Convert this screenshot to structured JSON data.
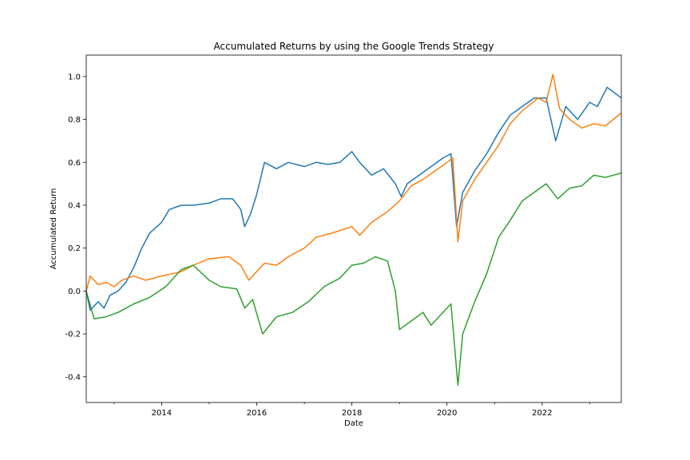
{
  "chart_data": {
    "type": "line",
    "title": "Accumulated Returns by using the Google Trends Strategy",
    "xlabel": "Date",
    "ylabel": "Accumulated Return",
    "xlim": [
      "2012-06-01",
      "2023-09-01"
    ],
    "ylim": [
      -0.52,
      1.1
    ],
    "x_ticks": [
      "2014",
      "2016",
      "2018",
      "2020",
      "2022"
    ],
    "y_ticks": [
      "-0.4",
      "-0.2",
      "0.0",
      "0.2",
      "0.4",
      "0.6",
      "0.8",
      "1.0"
    ],
    "grid": false,
    "legend": "none",
    "series": [
      {
        "color": "#1f77b4",
        "points": [
          [
            "2012-06-01",
            0.0
          ],
          [
            "2012-07-01",
            -0.09
          ],
          [
            "2012-09-01",
            -0.05
          ],
          [
            "2012-10-15",
            -0.08
          ],
          [
            "2012-12-01",
            -0.02
          ],
          [
            "2013-02-01",
            0.0
          ],
          [
            "2013-04-01",
            0.04
          ],
          [
            "2013-06-01",
            0.11
          ],
          [
            "2013-08-01",
            0.2
          ],
          [
            "2013-10-01",
            0.27
          ],
          [
            "2014-01-01",
            0.32
          ],
          [
            "2014-03-01",
            0.38
          ],
          [
            "2014-06-01",
            0.4
          ],
          [
            "2014-09-01",
            0.4
          ],
          [
            "2015-01-01",
            0.41
          ],
          [
            "2015-04-01",
            0.43
          ],
          [
            "2015-07-01",
            0.43
          ],
          [
            "2015-09-01",
            0.38
          ],
          [
            "2015-10-01",
            0.3
          ],
          [
            "2015-11-15",
            0.36
          ],
          [
            "2016-01-01",
            0.45
          ],
          [
            "2016-03-01",
            0.6
          ],
          [
            "2016-06-01",
            0.57
          ],
          [
            "2016-09-01",
            0.6
          ],
          [
            "2017-01-01",
            0.58
          ],
          [
            "2017-04-01",
            0.6
          ],
          [
            "2017-07-01",
            0.59
          ],
          [
            "2017-10-01",
            0.6
          ],
          [
            "2018-01-01",
            0.65
          ],
          [
            "2018-03-01",
            0.6
          ],
          [
            "2018-06-01",
            0.54
          ],
          [
            "2018-09-01",
            0.57
          ],
          [
            "2018-12-01",
            0.5
          ],
          [
            "2019-01-15",
            0.44
          ],
          [
            "2019-03-01",
            0.5
          ],
          [
            "2019-06-01",
            0.54
          ],
          [
            "2019-09-01",
            0.58
          ],
          [
            "2019-12-01",
            0.62
          ],
          [
            "2020-02-01",
            0.64
          ],
          [
            "2020-03-15",
            0.3
          ],
          [
            "2020-05-01",
            0.46
          ],
          [
            "2020-08-01",
            0.56
          ],
          [
            "2020-11-01",
            0.64
          ],
          [
            "2021-02-01",
            0.74
          ],
          [
            "2021-05-01",
            0.82
          ],
          [
            "2021-08-01",
            0.86
          ],
          [
            "2021-11-01",
            0.9
          ],
          [
            "2022-02-01",
            0.9
          ],
          [
            "2022-04-15",
            0.7
          ],
          [
            "2022-07-01",
            0.86
          ],
          [
            "2022-10-01",
            0.8
          ],
          [
            "2023-01-01",
            0.88
          ],
          [
            "2023-03-01",
            0.86
          ],
          [
            "2023-05-15",
            0.95
          ],
          [
            "2023-09-01",
            0.9
          ]
        ]
      },
      {
        "color": "#ff7f0e",
        "points": [
          [
            "2012-06-01",
            0.0
          ],
          [
            "2012-07-01",
            0.07
          ],
          [
            "2012-09-01",
            0.03
          ],
          [
            "2012-11-01",
            0.04
          ],
          [
            "2013-01-01",
            0.02
          ],
          [
            "2013-03-01",
            0.05
          ],
          [
            "2013-06-01",
            0.07
          ],
          [
            "2013-09-01",
            0.05
          ],
          [
            "2014-01-01",
            0.07
          ],
          [
            "2014-06-01",
            0.09
          ],
          [
            "2014-09-01",
            0.12
          ],
          [
            "2015-01-01",
            0.15
          ],
          [
            "2015-06-01",
            0.16
          ],
          [
            "2015-09-01",
            0.12
          ],
          [
            "2015-11-01",
            0.05
          ],
          [
            "2016-03-01",
            0.13
          ],
          [
            "2016-06-01",
            0.12
          ],
          [
            "2016-09-01",
            0.16
          ],
          [
            "2017-01-01",
            0.2
          ],
          [
            "2017-04-01",
            0.25
          ],
          [
            "2017-08-01",
            0.27
          ],
          [
            "2018-01-01",
            0.3
          ],
          [
            "2018-03-01",
            0.26
          ],
          [
            "2018-06-01",
            0.32
          ],
          [
            "2018-10-01",
            0.37
          ],
          [
            "2019-01-01",
            0.42
          ],
          [
            "2019-04-01",
            0.49
          ],
          [
            "2019-07-01",
            0.52
          ],
          [
            "2019-10-01",
            0.56
          ],
          [
            "2020-01-01",
            0.6
          ],
          [
            "2020-02-15",
            0.62
          ],
          [
            "2020-03-25",
            0.23
          ],
          [
            "2020-05-01",
            0.42
          ],
          [
            "2020-08-01",
            0.52
          ],
          [
            "2020-11-01",
            0.6
          ],
          [
            "2021-02-01",
            0.68
          ],
          [
            "2021-05-01",
            0.78
          ],
          [
            "2021-08-01",
            0.84
          ],
          [
            "2021-12-01",
            0.9
          ],
          [
            "2022-02-01",
            0.88
          ],
          [
            "2022-03-25",
            1.01
          ],
          [
            "2022-05-15",
            0.85
          ],
          [
            "2022-08-01",
            0.8
          ],
          [
            "2022-11-01",
            0.76
          ],
          [
            "2023-02-01",
            0.78
          ],
          [
            "2023-05-01",
            0.77
          ],
          [
            "2023-09-01",
            0.83
          ]
        ]
      },
      {
        "color": "#2ca02c",
        "points": [
          [
            "2012-06-01",
            0.0
          ],
          [
            "2012-08-01",
            -0.13
          ],
          [
            "2012-11-01",
            -0.12
          ],
          [
            "2013-02-01",
            -0.1
          ],
          [
            "2013-06-01",
            -0.06
          ],
          [
            "2013-10-01",
            -0.03
          ],
          [
            "2014-02-01",
            0.02
          ],
          [
            "2014-06-01",
            0.1
          ],
          [
            "2014-09-01",
            0.12
          ],
          [
            "2015-01-01",
            0.05
          ],
          [
            "2015-04-01",
            0.02
          ],
          [
            "2015-08-01",
            0.01
          ],
          [
            "2015-10-01",
            -0.08
          ],
          [
            "2015-12-01",
            -0.04
          ],
          [
            "2016-02-15",
            -0.2
          ],
          [
            "2016-06-01",
            -0.12
          ],
          [
            "2016-10-01",
            -0.1
          ],
          [
            "2017-02-01",
            -0.05
          ],
          [
            "2017-06-01",
            0.02
          ],
          [
            "2017-10-01",
            0.06
          ],
          [
            "2018-01-01",
            0.12
          ],
          [
            "2018-04-01",
            0.13
          ],
          [
            "2018-07-01",
            0.16
          ],
          [
            "2018-10-01",
            0.14
          ],
          [
            "2018-12-01",
            0.0
          ],
          [
            "2019-01-01",
            -0.18
          ],
          [
            "2019-04-01",
            -0.14
          ],
          [
            "2019-07-01",
            -0.1
          ],
          [
            "2019-09-01",
            -0.16
          ],
          [
            "2019-12-01",
            -0.1
          ],
          [
            "2020-02-01",
            -0.06
          ],
          [
            "2020-03-25",
            -0.44
          ],
          [
            "2020-05-01",
            -0.2
          ],
          [
            "2020-08-01",
            -0.05
          ],
          [
            "2020-11-01",
            0.08
          ],
          [
            "2021-02-01",
            0.25
          ],
          [
            "2021-05-01",
            0.33
          ],
          [
            "2021-08-01",
            0.42
          ],
          [
            "2021-11-01",
            0.46
          ],
          [
            "2022-02-01",
            0.5
          ],
          [
            "2022-05-01",
            0.43
          ],
          [
            "2022-08-01",
            0.48
          ],
          [
            "2022-11-01",
            0.49
          ],
          [
            "2023-02-01",
            0.54
          ],
          [
            "2023-05-01",
            0.53
          ],
          [
            "2023-09-01",
            0.55
          ]
        ]
      }
    ]
  }
}
